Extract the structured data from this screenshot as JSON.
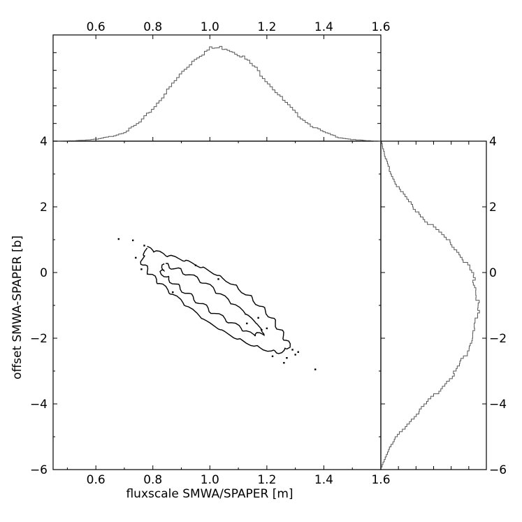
{
  "chart_data": {
    "type": "scatter",
    "subtype": "corner-plot (joint contour with marginal histograms)",
    "title": "",
    "xlabel": "fluxscale SMWA/SPAPER [m]",
    "ylabel": "offset SMWA-SPAPER [b]",
    "xlim": [
      0.45,
      1.6
    ],
    "ylim": [
      -6,
      4
    ],
    "x_ticks": [
      "0.6",
      "0.8",
      "1.0",
      "1.2",
      "1.4",
      "1.6"
    ],
    "y_ticks": [
      "4",
      "2",
      "0",
      "−2",
      "−4",
      "−6"
    ],
    "top_x_ticks": [
      "0.6",
      "0.8",
      "1.0",
      "1.2",
      "1.4",
      "1.6"
    ],
    "right_y_ticks": [
      "4",
      "2",
      "0",
      "−2",
      "−4",
      "−6"
    ],
    "right_x_ticks": [
      "1.6"
    ],
    "grid": false,
    "marginal_x": {
      "x": [
        0.45,
        0.5,
        0.55,
        0.6,
        0.65,
        0.7,
        0.75,
        0.8,
        0.85,
        0.9,
        0.95,
        1.0,
        1.05,
        1.1,
        1.15,
        1.2,
        1.25,
        1.3,
        1.35,
        1.4,
        1.45,
        1.5,
        1.55,
        1.6
      ],
      "values": [
        0,
        0.003,
        0.01,
        0.02,
        0.05,
        0.1,
        0.2,
        0.36,
        0.55,
        0.74,
        0.9,
        0.99,
        1.0,
        0.93,
        0.8,
        0.63,
        0.45,
        0.29,
        0.17,
        0.09,
        0.04,
        0.015,
        0.005,
        0
      ]
    },
    "marginal_y": {
      "y": [
        -6,
        -5.5,
        -5,
        -4.5,
        -4,
        -3.5,
        -3,
        -2.5,
        -2,
        -1.5,
        -1,
        -0.5,
        0,
        0.5,
        1,
        1.5,
        2,
        2.5,
        3,
        3.5,
        4
      ],
      "values": [
        0,
        0.07,
        0.17,
        0.32,
        0.48,
        0.64,
        0.78,
        0.88,
        0.95,
        0.99,
        1.0,
        0.99,
        0.93,
        0.83,
        0.67,
        0.48,
        0.32,
        0.19,
        0.1,
        0.04,
        0.005
      ]
    },
    "contours": [
      {
        "level": "outer",
        "points": [
          [
            0.78,
            0.75
          ],
          [
            0.84,
            0.55
          ],
          [
            0.92,
            0.35
          ],
          [
            1.0,
            0.05
          ],
          [
            1.08,
            -0.35
          ],
          [
            1.15,
            -0.8
          ],
          [
            1.21,
            -1.3
          ],
          [
            1.25,
            -1.8
          ],
          [
            1.28,
            -2.25
          ],
          [
            1.24,
            -2.45
          ],
          [
            1.16,
            -2.25
          ],
          [
            1.08,
            -1.95
          ],
          [
            0.99,
            -1.5
          ],
          [
            0.91,
            -0.95
          ],
          [
            0.84,
            -0.45
          ],
          [
            0.79,
            -0.05
          ],
          [
            0.76,
            0.35
          ],
          [
            0.78,
            0.75
          ]
        ]
      },
      {
        "level": "inner",
        "points": [
          [
            0.84,
            0.25
          ],
          [
            0.9,
            0.05
          ],
          [
            0.98,
            -0.3
          ],
          [
            1.05,
            -0.75
          ],
          [
            1.12,
            -1.2
          ],
          [
            1.17,
            -1.6
          ],
          [
            1.19,
            -1.85
          ],
          [
            1.15,
            -1.9
          ],
          [
            1.08,
            -1.55
          ],
          [
            1.0,
            -1.15
          ],
          [
            0.93,
            -0.7
          ],
          [
            0.87,
            -0.3
          ],
          [
            0.83,
            0.0
          ],
          [
            0.84,
            0.25
          ]
        ]
      }
    ],
    "outlier_points": [
      [
        0.68,
        1.02
      ],
      [
        0.73,
        0.98
      ],
      [
        0.77,
        0.82
      ],
      [
        0.74,
        0.45
      ],
      [
        0.76,
        0.1
      ],
      [
        1.27,
        -2.6
      ],
      [
        1.3,
        -2.5
      ],
      [
        1.31,
        -2.42
      ],
      [
        1.26,
        -2.75
      ],
      [
        1.37,
        -2.95
      ],
      [
        1.22,
        -2.55
      ],
      [
        1.29,
        -2.35
      ],
      [
        1.13,
        -1.55
      ],
      [
        1.17,
        -1.38
      ],
      [
        1.03,
        -0.2
      ],
      [
        0.95,
        0.22
      ],
      [
        1.2,
        -1.7
      ],
      [
        0.87,
        -0.6
      ]
    ]
  }
}
